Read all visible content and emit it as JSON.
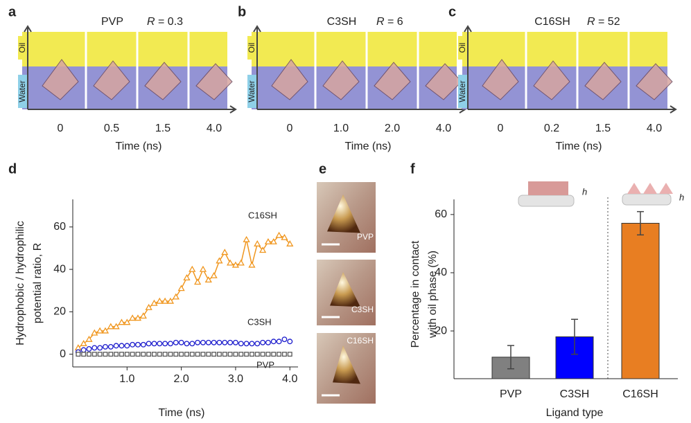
{
  "panels_abc": [
    {
      "letter": "a",
      "ligand": "PVP",
      "ratio_symbol": "R",
      "ratio_text": " = 0.3",
      "oil": "Oil",
      "water": "Water",
      "times": [
        "0",
        "0.5",
        "1.5",
        "4.0"
      ],
      "xlabel": "Time (ns)"
    },
    {
      "letter": "b",
      "ligand": "C3SH",
      "ratio_symbol": "R",
      "ratio_text": " = 6",
      "oil": "Oil",
      "water": "Water",
      "times": [
        "0",
        "1.0",
        "2.0",
        "4.0"
      ],
      "xlabel": "Time (ns)"
    },
    {
      "letter": "c",
      "ligand": "C16SH",
      "ratio_symbol": "R",
      "ratio_text": " = 52",
      "oil": "Oil",
      "water": "Water",
      "times": [
        "0",
        "0.2",
        "1.5",
        "4.0"
      ],
      "xlabel": "Time (ns)"
    }
  ],
  "panel_e": {
    "letter": "e",
    "labels": [
      "PVP",
      "C3SH",
      "C16SH"
    ]
  },
  "chart_data": [
    {
      "type": "line",
      "panel_label": "d",
      "xlabel": "Time (ns)",
      "ylabel": [
        "Hydrophobic / hydrophilic",
        "potential ratio, R"
      ],
      "x": [
        0.1,
        0.2,
        0.3,
        0.4,
        0.5,
        0.6,
        0.7,
        0.8,
        0.9,
        1.0,
        1.1,
        1.2,
        1.3,
        1.4,
        1.5,
        1.6,
        1.7,
        1.8,
        1.9,
        2.0,
        2.1,
        2.2,
        2.3,
        2.4,
        2.5,
        2.6,
        2.7,
        2.8,
        2.9,
        3.0,
        3.1,
        3.2,
        3.3,
        3.4,
        3.5,
        3.6,
        3.7,
        3.8,
        3.9,
        4.0
      ],
      "series": [
        {
          "name": "C16SH",
          "color": "#f0961e",
          "marker": "triangle",
          "line": true,
          "values": [
            3,
            5,
            7,
            10,
            11,
            11,
            13,
            13,
            15,
            15,
            17,
            17,
            18,
            22,
            24,
            25,
            25,
            25,
            27,
            31,
            36,
            40,
            34,
            40,
            35,
            37,
            44,
            48,
            43,
            42,
            43,
            54,
            42,
            52,
            49,
            53,
            53,
            56,
            55,
            52
          ]
        },
        {
          "name": "C3SH",
          "color": "#1a1acc",
          "marker": "circle",
          "line": false,
          "values": [
            1,
            2,
            2.5,
            3,
            3,
            3.5,
            3.5,
            4,
            4,
            4,
            4.5,
            4.5,
            4.5,
            5,
            5,
            5,
            5,
            5,
            5.5,
            5.5,
            5,
            5,
            5.5,
            5.5,
            5.5,
            5.5,
            5.5,
            5.5,
            5.5,
            5.5,
            5,
            5,
            5,
            5,
            5.5,
            5.5,
            6,
            6,
            7,
            6
          ]
        },
        {
          "name": "PVP",
          "color": "#555555",
          "marker": "square",
          "line": false,
          "values": [
            0,
            0,
            0,
            0,
            0,
            0,
            0,
            0,
            0,
            0,
            0,
            0,
            0,
            0,
            0,
            0,
            0,
            0,
            0,
            0,
            0,
            0,
            0,
            0,
            0,
            0,
            0,
            0,
            0,
            0,
            0,
            0,
            0,
            0,
            0,
            0,
            0,
            0,
            0,
            0
          ]
        }
      ],
      "xlim": [
        0,
        4.15
      ],
      "ylim": [
        -6,
        73
      ],
      "xticks": [
        {
          "value": 1,
          "label": "1.0"
        },
        {
          "value": 2,
          "label": "2.0"
        },
        {
          "value": 3,
          "label": "3.0"
        },
        {
          "value": 4,
          "label": "4.0"
        }
      ],
      "yticks": [
        0,
        20,
        40,
        60
      ]
    },
    {
      "type": "bar",
      "panel_label": "f",
      "xlabel": "Ligand type",
      "ylabel": [
        "Percentage in contact",
        "with oil phase (%)"
      ],
      "categories": [
        "PVP",
        "C3SH",
        "C16SH"
      ],
      "values": [
        11,
        18,
        57
      ],
      "errors": [
        4,
        6,
        4
      ],
      "colors": [
        "#808080",
        "#0000ff",
        "#e87e22"
      ],
      "ylim": [
        3.6,
        65.2
      ],
      "yticks": [
        20,
        40,
        60
      ],
      "icon_labels": [
        "h",
        "h"
      ]
    }
  ]
}
